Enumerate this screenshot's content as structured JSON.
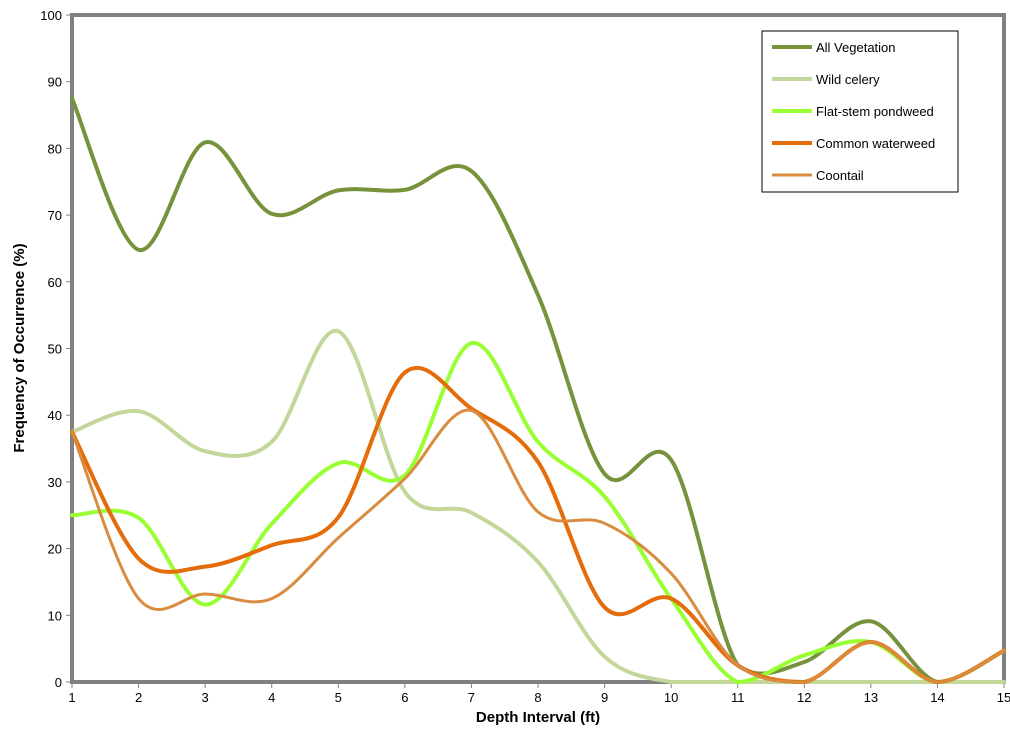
{
  "chart_data": {
    "type": "line",
    "smooth": true,
    "title": "",
    "xlabel": "Depth Interval (ft)",
    "ylabel": "Frequency of Occurrence (%)",
    "x": [
      1,
      2,
      3,
      4,
      5,
      6,
      7,
      8,
      9,
      10,
      11,
      12,
      13,
      14,
      15
    ],
    "xlim": [
      1,
      15
    ],
    "ylim": [
      0,
      100
    ],
    "yticks": [
      0,
      10,
      20,
      30,
      40,
      50,
      60,
      70,
      80,
      90,
      100
    ],
    "grid": false,
    "legend_position": "top-right",
    "frame_color": "#808080",
    "series": [
      {
        "name": "All Vegetation",
        "color": "#76933C",
        "width": 4,
        "values": [
          87.5,
          64.8,
          80.9,
          70.2,
          73.7,
          73.8,
          76.6,
          58.0,
          31.2,
          33.3,
          2.5,
          3.0,
          9.1,
          0.0,
          4.7
        ]
      },
      {
        "name": "Wild celery",
        "color": "#C4D79B",
        "width": 4,
        "values": [
          37.5,
          40.6,
          34.6,
          36.0,
          52.6,
          28.5,
          25.4,
          18.0,
          3.8,
          0.0,
          0.0,
          0.0,
          0.0,
          0.0,
          0.0
        ]
      },
      {
        "name": "Flat-stem pondweed",
        "color": "#99FF33",
        "width": 4,
        "values": [
          25.0,
          24.6,
          11.6,
          23.7,
          32.8,
          31.0,
          50.8,
          36.0,
          27.8,
          12.5,
          0.0,
          4.0,
          6.0,
          0.0,
          4.7
        ]
      },
      {
        "name": "Common waterweed",
        "color": "#E46C0A",
        "width": 4,
        "values": [
          37.5,
          18.5,
          17.3,
          20.5,
          24.7,
          46.4,
          41.0,
          33.0,
          11.2,
          12.5,
          2.5,
          0.0,
          6.0,
          0.0,
          4.7
        ]
      },
      {
        "name": "Coontail",
        "color": "#D98C3F",
        "width": 3,
        "values": [
          37.5,
          12.5,
          13.2,
          12.5,
          21.6,
          30.5,
          40.7,
          25.5,
          23.8,
          16.3,
          2.5,
          0.0,
          6.0,
          0.0,
          4.7
        ]
      }
    ]
  }
}
